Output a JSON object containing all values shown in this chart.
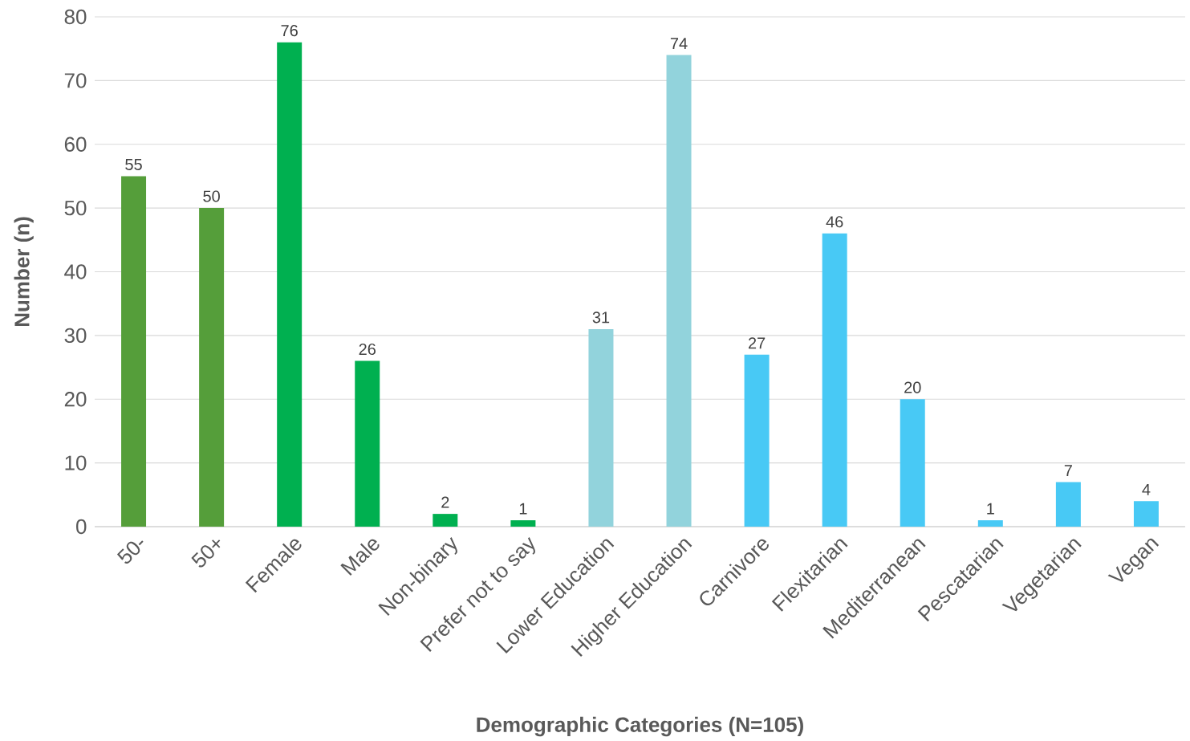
{
  "chart_data": {
    "type": "bar",
    "xlabel": "Demographic Categories (N=105)",
    "ylabel": "Number (n)",
    "categories": [
      "50-",
      "50+",
      "Female",
      "Male",
      "Non-binary",
      "Prefer not to say",
      "Lower Education",
      "Higher Education",
      "Carnivore",
      "Flexitarian",
      "Mediterranean",
      "Pescatarian",
      "Vegetarian",
      "Vegan"
    ],
    "values": [
      55,
      50,
      76,
      26,
      2,
      1,
      31,
      74,
      27,
      46,
      20,
      1,
      7,
      4
    ],
    "colors": [
      "#559e3a",
      "#559e3a",
      "#00b050",
      "#00b050",
      "#00b050",
      "#00b050",
      "#92d3dc",
      "#92d3dc",
      "#48c9f5",
      "#48c9f5",
      "#48c9f5",
      "#48c9f5",
      "#48c9f5",
      "#48c9f5"
    ],
    "ylim": [
      0,
      80
    ],
    "yticks": [
      0,
      10,
      20,
      30,
      40,
      50,
      60,
      70,
      80
    ],
    "grid": "y",
    "data_labels": true
  }
}
